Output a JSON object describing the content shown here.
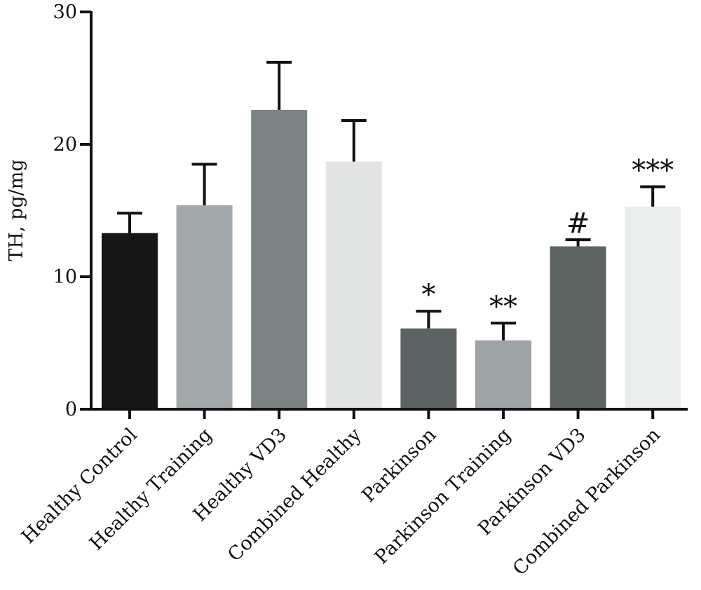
{
  "chart_data": {
    "type": "bar",
    "title": "",
    "xlabel": "",
    "ylabel": "TH, pg/mg",
    "ylim": [
      0,
      30
    ],
    "yticks": [
      "0",
      "10",
      "20",
      "30"
    ],
    "grid": false,
    "legend": "none",
    "categories": [
      "Healthy Control",
      "Healthy Training",
      "Healthy VD3",
      "Combined Healthy",
      "Parkinson",
      "Parkinson Training",
      "Parkinson VD3",
      "Combined Parkinson"
    ],
    "values": [
      13.3,
      15.4,
      22.6,
      18.7,
      6.1,
      5.2,
      12.3,
      15.3
    ],
    "error": [
      1.5,
      3.1,
      3.6,
      3.1,
      1.3,
      1.3,
      0.5,
      1.5
    ],
    "significance": [
      "",
      "",
      "",
      "",
      "*",
      "**",
      "#",
      "***"
    ],
    "colors": [
      "#161616",
      "#a3a8aa",
      "#7b8482",
      "#e3e5e5",
      "#5b6261",
      "#9ea3a6",
      "#5d6462",
      "#eceeee"
    ]
  }
}
